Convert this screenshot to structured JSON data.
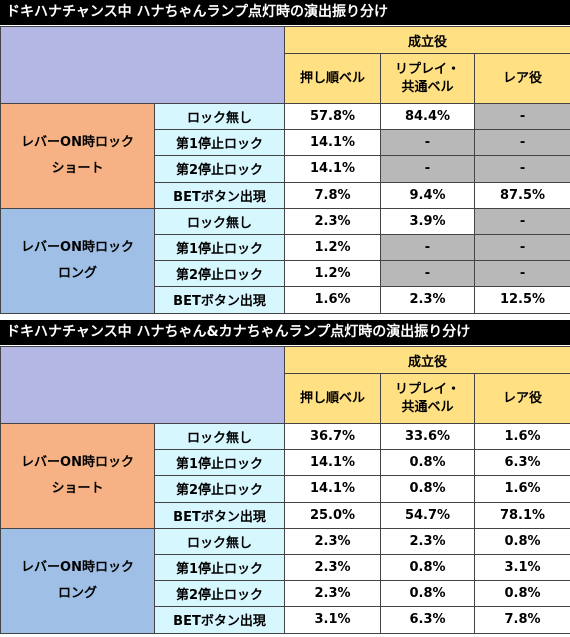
{
  "tables": [
    {
      "title": "ドキハナチャンス中 ハナちゃんランプ点灯時の演出振り分け",
      "header_group": "成立役",
      "columns": [
        "押し順ベル",
        "リプレイ・\n共通ベル",
        "レア役"
      ],
      "groups": [
        {
          "label": "レバーON時ロック\nショート",
          "rows": [
            {
              "name": "ロック無し",
              "values": [
                "57.8%",
                "84.4%",
                "-"
              ]
            },
            {
              "name": "第1停止ロック",
              "values": [
                "14.1%",
                "-",
                "-"
              ]
            },
            {
              "name": "第2停止ロック",
              "values": [
                "14.1%",
                "-",
                "-"
              ]
            },
            {
              "name": "BETボタン出現",
              "values": [
                "7.8%",
                "9.4%",
                "87.5%"
              ]
            }
          ]
        },
        {
          "label": "レバーON時ロック\nロング",
          "rows": [
            {
              "name": "ロック無し",
              "values": [
                "2.3%",
                "3.9%",
                "-"
              ]
            },
            {
              "name": "第1停止ロック",
              "values": [
                "1.2%",
                "-",
                "-"
              ]
            },
            {
              "name": "第2停止ロック",
              "values": [
                "1.2%",
                "-",
                "-"
              ]
            },
            {
              "name": "BETボタン出現",
              "values": [
                "1.6%",
                "2.3%",
                "12.5%"
              ]
            }
          ]
        }
      ]
    },
    {
      "title": "ドキハナチャンス中 ハナちゃん&カナちゃんランプ点灯時の演出振り分け",
      "header_group": "成立役",
      "columns": [
        "押し順ベル",
        "リプレイ・\n共通ベル",
        "レア役"
      ],
      "groups": [
        {
          "label": "レバーON時ロック\nショート",
          "rows": [
            {
              "name": "ロック無し",
              "values": [
                "36.7%",
                "33.6%",
                "1.6%"
              ]
            },
            {
              "name": "第1停止ロック",
              "values": [
                "14.1%",
                "0.8%",
                "6.3%"
              ]
            },
            {
              "name": "第2停止ロック",
              "values": [
                "14.1%",
                "0.8%",
                "1.6%"
              ]
            },
            {
              "name": "BETボタン出現",
              "values": [
                "25.0%",
                "54.7%",
                "78.1%"
              ]
            }
          ]
        },
        {
          "label": "レバーON時ロック\nロング",
          "rows": [
            {
              "name": "ロック無し",
              "values": [
                "2.3%",
                "2.3%",
                "0.8%"
              ]
            },
            {
              "name": "第1停止ロック",
              "values": [
                "2.3%",
                "0.8%",
                "3.1%"
              ]
            },
            {
              "name": "第2停止ロック",
              "values": [
                "2.3%",
                "0.8%",
                "0.8%"
              ]
            },
            {
              "name": "BETボタン出現",
              "values": [
                "3.1%",
                "6.3%",
                "7.8%"
              ]
            }
          ]
        }
      ]
    }
  ],
  "colors": {
    "banner": "#000000",
    "header_yellow": "#ffe083",
    "header_blank": "#b4b7e4",
    "short_group": "#f6b184",
    "long_group": "#9fbfe6",
    "sub_label": "#d7f7ff",
    "gray_cell": "#b8b8b8"
  }
}
